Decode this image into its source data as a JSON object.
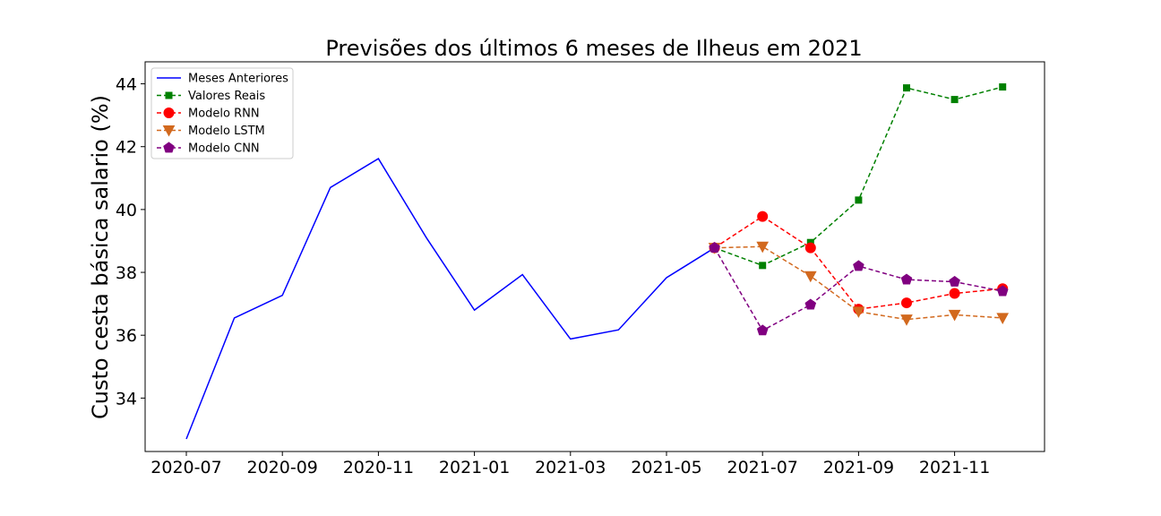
{
  "chart_data": {
    "type": "line",
    "title": "Previsões dos últimos 6 meses de Ilheus em 2021",
    "xlabel": "",
    "ylabel": "Custo cesta básica salario (%)",
    "x_ticks": [
      "2020-07",
      "2020-09",
      "2020-11",
      "2021-01",
      "2021-03",
      "2021-05",
      "2021-07",
      "2021-09",
      "2021-11"
    ],
    "y_ticks": [
      "34",
      "36",
      "38",
      "40",
      "42",
      "44"
    ],
    "ylim": [
      32.3,
      44.7
    ],
    "legend_position": "top-left",
    "grid": false,
    "series": [
      {
        "name": "Meses Anteriores",
        "color": "#0000ff",
        "style": "solid",
        "marker": "none",
        "x": [
          "2020-07",
          "2020-08",
          "2020-09",
          "2020-10",
          "2020-11",
          "2020-12",
          "2021-01",
          "2021-02",
          "2021-03",
          "2021-04",
          "2021-05",
          "2021-06"
        ],
        "values": [
          32.7,
          36.55,
          37.27,
          40.7,
          41.62,
          39.1,
          36.8,
          37.93,
          35.88,
          36.17,
          37.83,
          38.78
        ]
      },
      {
        "name": "Valores Reais",
        "color": "#008000",
        "style": "dashed",
        "marker": "square",
        "x": [
          "2021-06",
          "2021-07",
          "2021-08",
          "2021-09",
          "2021-10",
          "2021-11",
          "2021-12"
        ],
        "values": [
          38.78,
          38.22,
          38.95,
          40.3,
          43.87,
          43.5,
          43.9
        ]
      },
      {
        "name": "Modelo RNN",
        "color": "#ff0000",
        "style": "dashed",
        "marker": "circle",
        "x": [
          "2021-06",
          "2021-07",
          "2021-08",
          "2021-09",
          "2021-10",
          "2021-11",
          "2021-12"
        ],
        "values": [
          38.78,
          39.78,
          38.78,
          36.83,
          37.03,
          37.33,
          37.48
        ]
      },
      {
        "name": "Modelo LSTM",
        "color": "#d2691e",
        "style": "dashed",
        "marker": "triangle-down",
        "x": [
          "2021-06",
          "2021-07",
          "2021-08",
          "2021-09",
          "2021-10",
          "2021-11",
          "2021-12"
        ],
        "values": [
          38.78,
          38.82,
          37.88,
          36.75,
          36.5,
          36.65,
          36.55
        ]
      },
      {
        "name": "Modelo CNN",
        "color": "#800080",
        "style": "dashed",
        "marker": "pentagon",
        "x": [
          "2021-06",
          "2021-07",
          "2021-08",
          "2021-09",
          "2021-10",
          "2021-11",
          "2021-12"
        ],
        "values": [
          38.78,
          36.15,
          36.97,
          38.2,
          37.77,
          37.7,
          37.4
        ]
      }
    ]
  }
}
